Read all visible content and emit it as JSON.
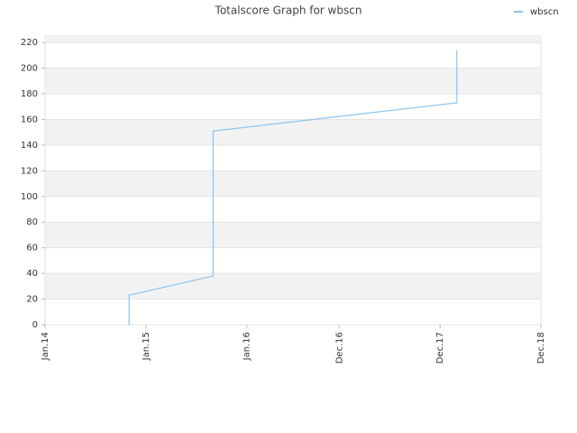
{
  "chart_data": {
    "type": "line",
    "title": "Totalscore Graph for wbscn",
    "x": [
      "2014-11",
      "2014-11",
      "2015-09",
      "2015-09",
      "2018-02",
      "2018-02"
    ],
    "series": [
      {
        "name": "wbscn",
        "color": "#8cc4ee",
        "values": [
          0,
          23,
          38,
          151,
          173,
          214
        ]
      }
    ],
    "xlim": [
      "2014-01",
      "2018-12"
    ],
    "xticks": [
      {
        "value": "2014-01",
        "label": "Jan.14"
      },
      {
        "value": "2015-01",
        "label": "Jan.15"
      },
      {
        "value": "2016-01",
        "label": "Jan.16"
      },
      {
        "value": "2016-12",
        "label": "Dec.16"
      },
      {
        "value": "2017-12",
        "label": "Dec.17"
      },
      {
        "value": "2018-12",
        "label": "Dec.18"
      }
    ],
    "ylim": [
      0,
      225
    ],
    "yticks": [
      0,
      20,
      40,
      60,
      80,
      100,
      120,
      140,
      160,
      180,
      200,
      220
    ],
    "grid": true,
    "legend": "top-right"
  }
}
